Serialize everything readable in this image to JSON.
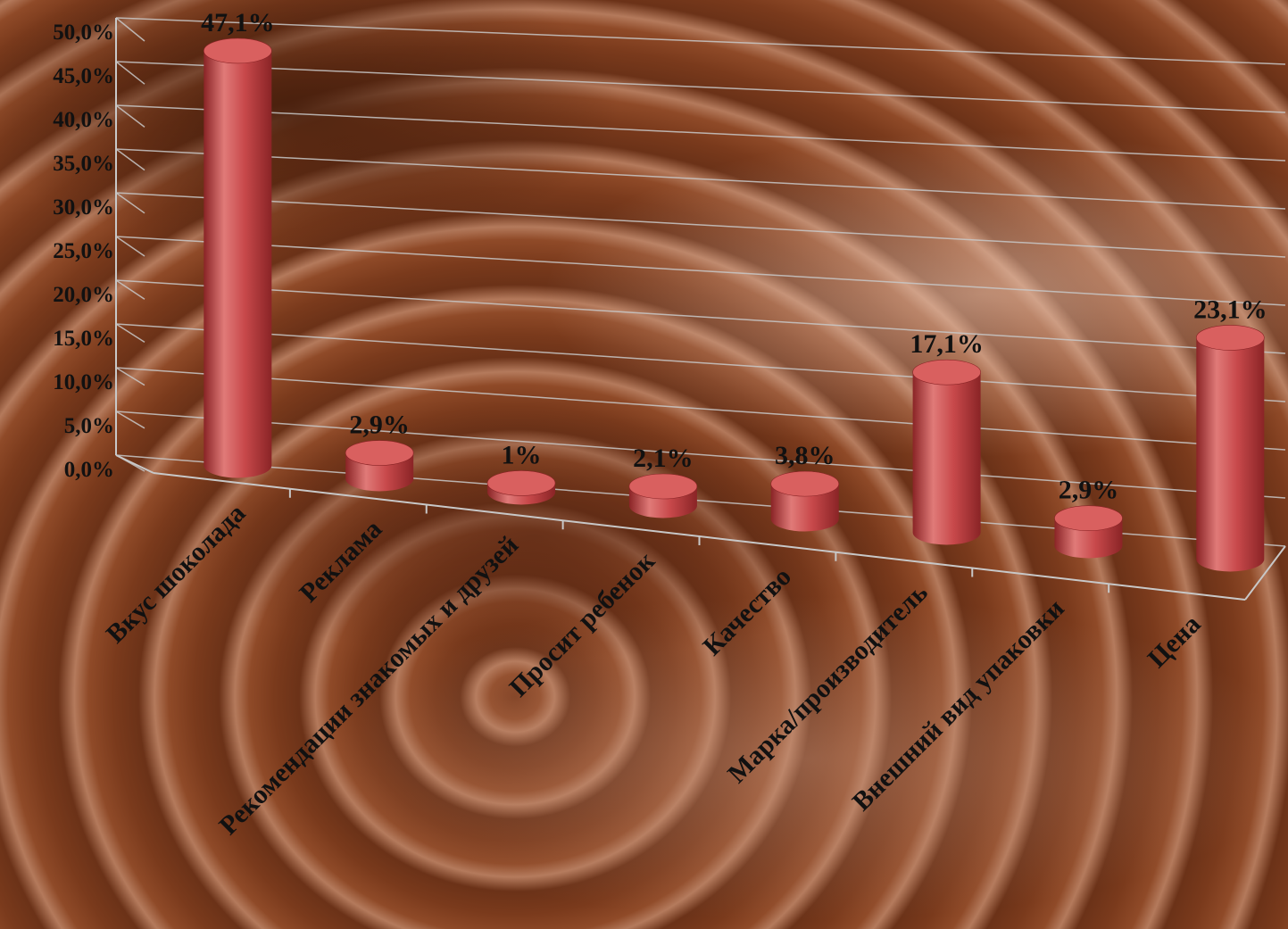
{
  "chart_data": {
    "type": "bar",
    "title": "",
    "xlabel": "",
    "ylabel": "",
    "ylim": [
      0,
      50
    ],
    "y_ticks": [
      "0,0%",
      "5,0%",
      "10,0%",
      "15,0%",
      "20,0%",
      "25,0%",
      "30,0%",
      "35,0%",
      "40,0%",
      "45,0%",
      "50,0%"
    ],
    "categories": [
      "Вкус шоколада",
      "Реклама",
      "Рекомендации знакомых и друзей",
      "Просит ребенок",
      "Качество",
      "Марка/производитель",
      "Внешний вид упаковки",
      "Цена"
    ],
    "values": [
      47.1,
      2.9,
      1,
      2.1,
      3.8,
      17.1,
      2.9,
      23.1
    ],
    "data_labels": [
      "47,1%",
      "2,9%",
      "1%",
      "2,1%",
      "3,8%",
      "17,1%",
      "2,9%",
      "23,1%"
    ],
    "bar_shape": "cylinder",
    "grid": true,
    "legend": "none",
    "colors": {
      "bar": "#c8494b",
      "bar_highlight": "#e07a78",
      "bar_shadow": "#8a2426",
      "bar_top": "#d9605f",
      "gridline": "#c8c8c8",
      "text": "#111111"
    }
  }
}
